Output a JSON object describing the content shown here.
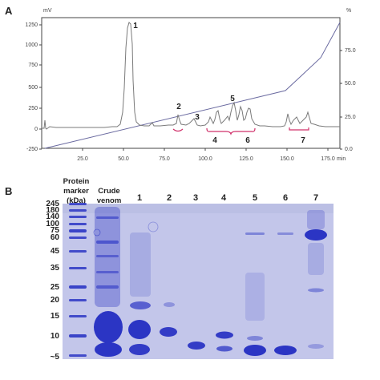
{
  "panel_a": {
    "label": "A",
    "left_unit": "mV",
    "right_unit": "%",
    "x_unit": "min",
    "left_ticks": [
      "1250",
      "1000",
      "750",
      "500",
      "250",
      "0",
      "-250"
    ],
    "right_ticks": [
      "75.0",
      "50.0",
      "25.0",
      "0.0"
    ],
    "x_ticks": [
      "25.0",
      "50.0",
      "75.0",
      "100.0",
      "125.0",
      "150.0",
      "175.0"
    ],
    "peak_labels": [
      "1",
      "2",
      "3",
      "4",
      "5",
      "6",
      "7"
    ]
  },
  "panel_b": {
    "label": "B",
    "marker_title": [
      "Protein",
      "marker",
      "(kDa)"
    ],
    "crude_title": [
      "Crude",
      "venom"
    ],
    "lane_labels": [
      "1",
      "2",
      "3",
      "4",
      "5",
      "6",
      "7"
    ],
    "mw_labels": [
      "245",
      "180",
      "140",
      "100",
      "75",
      "60",
      "45",
      "35",
      "25",
      "20",
      "15",
      "10",
      "~5"
    ]
  },
  "colors": {
    "trace": "#7a7a7a",
    "gradient": "#6a6aa0",
    "bracket": "#d0306a",
    "gel_background": "#c3c6ea",
    "band": "#2b35c4"
  }
}
